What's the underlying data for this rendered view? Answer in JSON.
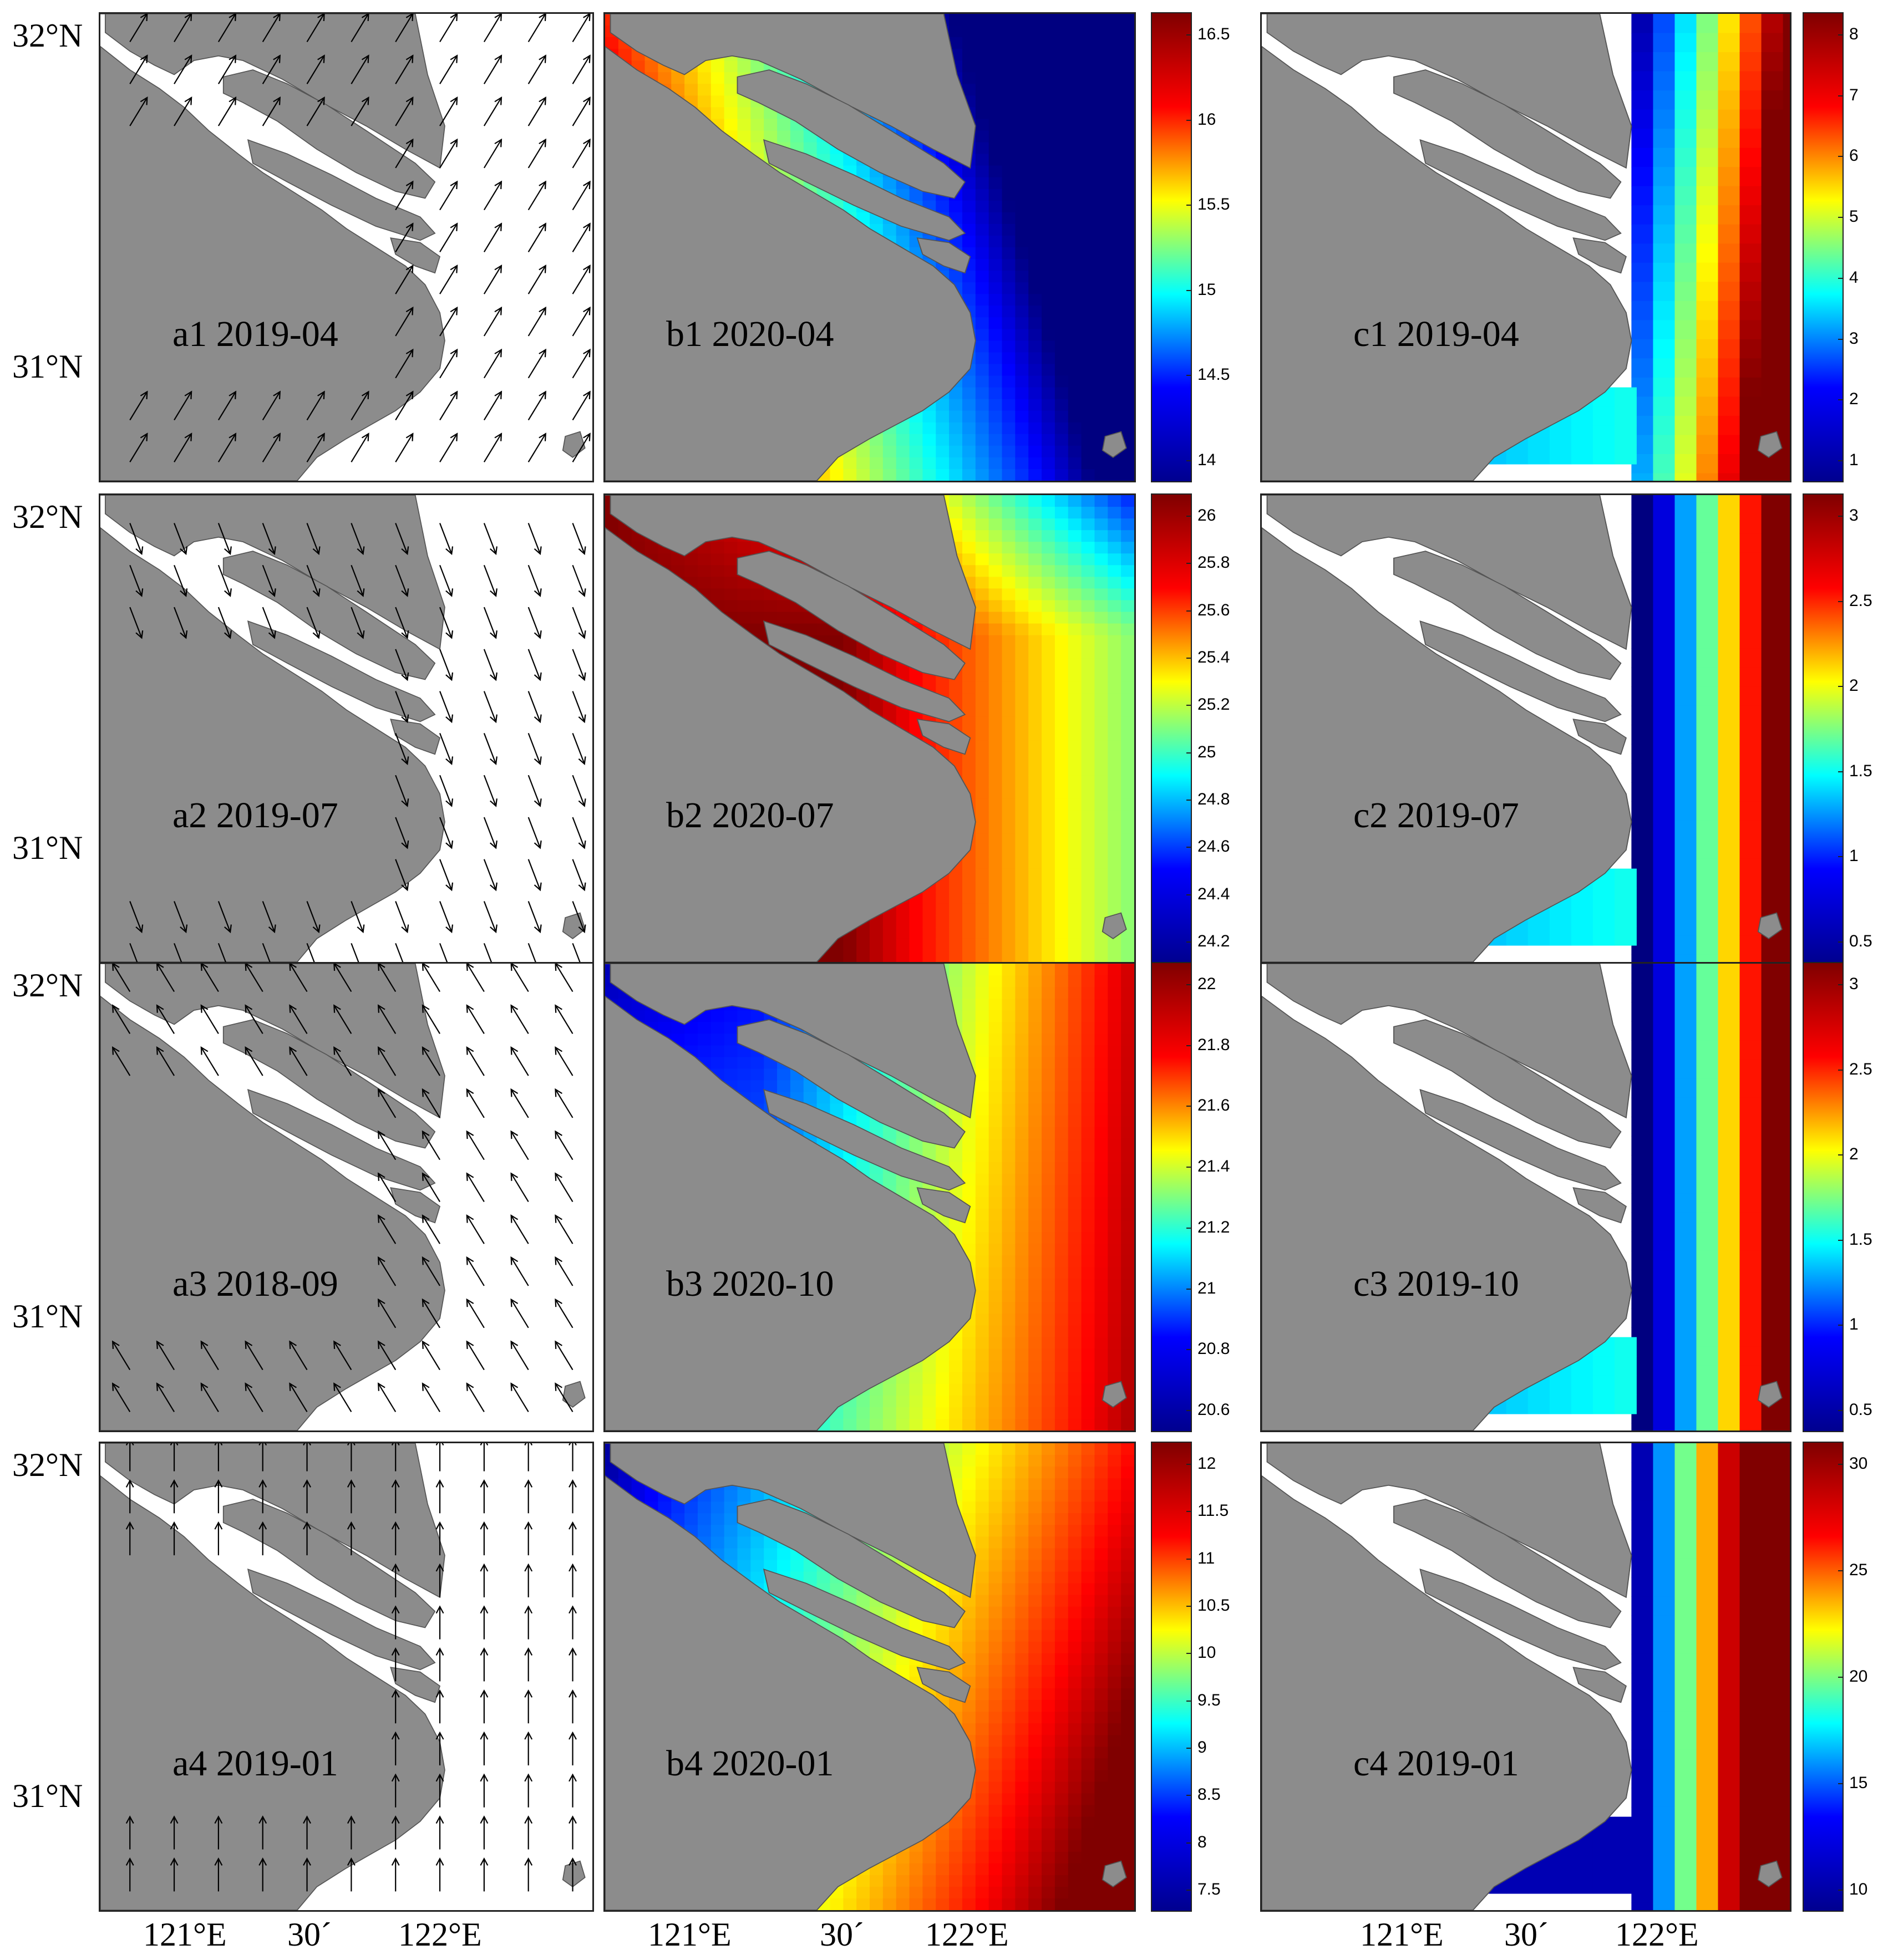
{
  "lat_labels": {
    "north": "32°N",
    "south": "31°N"
  },
  "lon_labels": [
    "121°E",
    "30´",
    "122°E"
  ],
  "colors": {
    "land": "#8c8c8c",
    "water": "#ffffff",
    "arrow": "#000000"
  },
  "colormap": "jet",
  "rows": [
    {
      "a": {
        "label": "a1 2019-04",
        "arrow_direction_deg": 300
      },
      "b": {
        "label": "b1 2020-04"
      },
      "c": {
        "label": "c1 2019-04"
      },
      "b_colorbar": [
        "16.5",
        "16",
        "15.5",
        "15",
        "14.5",
        "14"
      ],
      "c_colorbar": [
        "8",
        "7",
        "6",
        "5",
        "4",
        "3",
        "2",
        "1"
      ]
    },
    {
      "a": {
        "label": "a2 2019-07",
        "arrow_direction_deg": 70
      },
      "b": {
        "label": "b2 2020-07"
      },
      "c": {
        "label": "c2 2019-07"
      },
      "b_colorbar": [
        "26",
        "25.8",
        "25.6",
        "25.4",
        "25.2",
        "25",
        "24.8",
        "24.6",
        "24.4",
        "24.2"
      ],
      "c_colorbar": [
        "3",
        "2.5",
        "2",
        "1.5",
        "1",
        "0.5"
      ]
    },
    {
      "a": {
        "label": "a3 2018-09",
        "arrow_direction_deg": 240
      },
      "b": {
        "label": "b3 2020-10"
      },
      "c": {
        "label": "c3 2019-10"
      },
      "b_colorbar": [
        "22",
        "21.8",
        "21.6",
        "21.4",
        "21.2",
        "21",
        "20.8",
        "20.6"
      ],
      "c_colorbar": [
        "3",
        "2.5",
        "2",
        "1.5",
        "1",
        "0.5"
      ]
    },
    {
      "a": {
        "label": "a4 2019-01",
        "arrow_direction_deg": 270
      },
      "b": {
        "label": "b4 2020-01"
      },
      "c": {
        "label": "c4 2019-01"
      },
      "b_colorbar": [
        "12",
        "11.5",
        "11",
        "10.5",
        "10",
        "9.5",
        "9",
        "8.5",
        "8",
        "7.5"
      ],
      "c_colorbar": [
        "30",
        "25",
        "20",
        "15",
        "10"
      ]
    }
  ]
}
